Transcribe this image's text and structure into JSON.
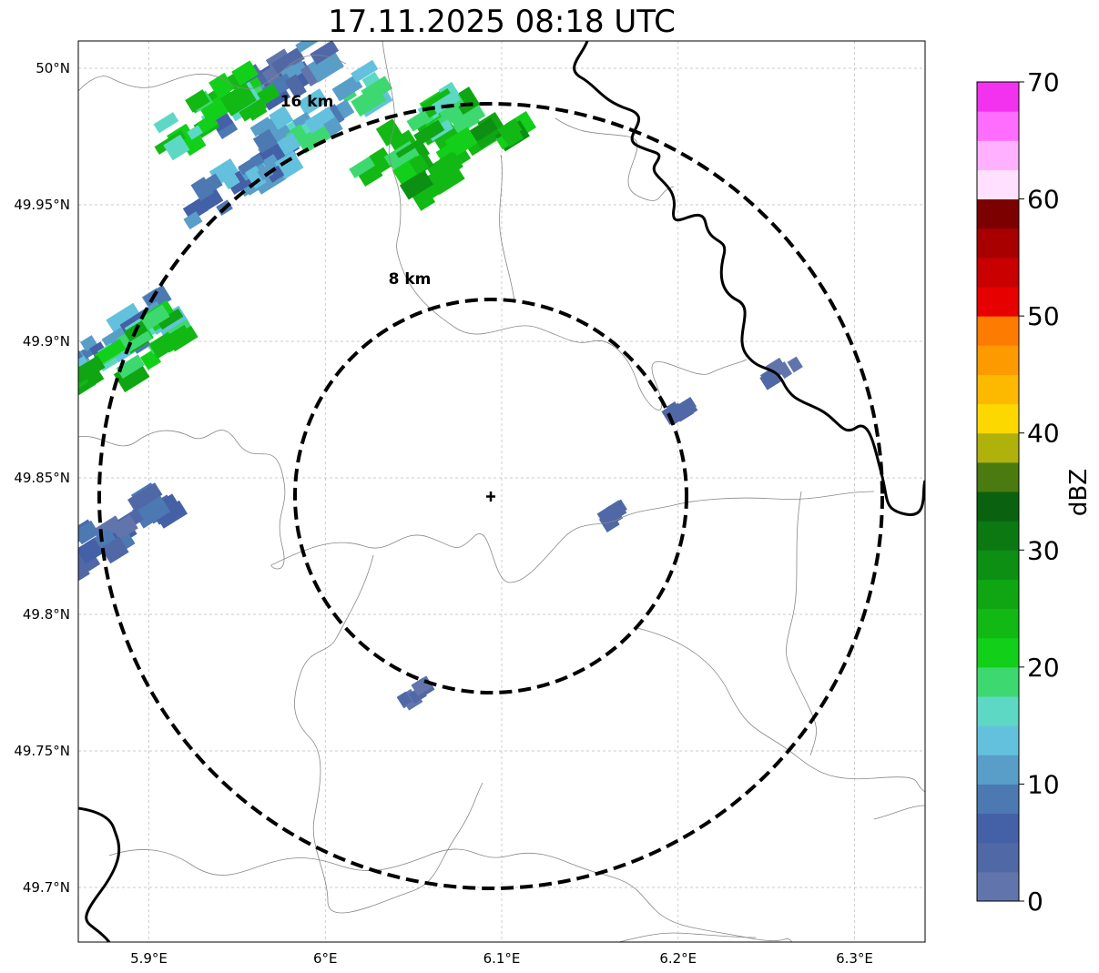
{
  "title": "17.11.2025 08:18 UTC",
  "map": {
    "lon_range": [
      5.86,
      6.34
    ],
    "lat_range": [
      49.68,
      50.01
    ],
    "x_ticks": [
      {
        "value": 5.9,
        "label": "5.9°E"
      },
      {
        "value": 6.0,
        "label": "6°E"
      },
      {
        "value": 6.1,
        "label": "6.1°E"
      },
      {
        "value": 6.2,
        "label": "6.2°E"
      },
      {
        "value": 6.3,
        "label": "6.3°E"
      }
    ],
    "y_ticks": [
      {
        "value": 50.0,
        "label": "50°N"
      },
      {
        "value": 49.95,
        "label": "49.95°N"
      },
      {
        "value": 49.9,
        "label": "49.9°N"
      },
      {
        "value": 49.85,
        "label": "49.85°N"
      },
      {
        "value": 49.8,
        "label": "49.8°N"
      },
      {
        "value": 49.75,
        "label": "49.75°N"
      },
      {
        "value": 49.7,
        "label": "49.7°N"
      }
    ],
    "gridlines": true,
    "radar_site": {
      "lon": 6.095,
      "lat": 49.843
    },
    "range_rings": [
      {
        "label": "8 km",
        "radius_km": 8
      },
      {
        "label": "16 km",
        "radius_km": 16
      }
    ],
    "echoes": [
      {
        "lon": 5.97,
        "lat": 49.995,
        "dbz": 6
      },
      {
        "lon": 6.0,
        "lat": 49.985,
        "dbz": 14
      },
      {
        "lon": 6.05,
        "lat": 49.975,
        "dbz": 21
      },
      {
        "lon": 6.08,
        "lat": 49.97,
        "dbz": 24
      },
      {
        "lon": 5.95,
        "lat": 49.96,
        "dbz": 10
      },
      {
        "lon": 5.94,
        "lat": 49.985,
        "dbz": 20
      },
      {
        "lon": 5.88,
        "lat": 49.9,
        "dbz": 12
      },
      {
        "lon": 5.89,
        "lat": 49.895,
        "dbz": 22
      },
      {
        "lon": 5.88,
        "lat": 49.83,
        "dbz": 5
      },
      {
        "lon": 6.2,
        "lat": 49.875,
        "dbz": 4
      },
      {
        "lon": 6.16,
        "lat": 49.835,
        "dbz": 4
      },
      {
        "lon": 6.05,
        "lat": 49.77,
        "dbz": 2
      },
      {
        "lon": 6.258,
        "lat": 49.89,
        "dbz": 2
      }
    ]
  },
  "colorbar": {
    "label": "dBZ",
    "ticks": [
      {
        "value": 0,
        "label": "0"
      },
      {
        "value": 10,
        "label": "10"
      },
      {
        "value": 20,
        "label": "20"
      },
      {
        "value": 30,
        "label": "30"
      },
      {
        "value": 40,
        "label": "40"
      },
      {
        "value": 50,
        "label": "50"
      },
      {
        "value": 60,
        "label": "60"
      },
      {
        "value": 70,
        "label": "70"
      }
    ],
    "range": [
      0,
      70
    ],
    "colors": [
      "#6175ac",
      "#5068a6",
      "#4460a6",
      "#4c79b2",
      "#589ec8",
      "#63c1dd",
      "#5dd8c5",
      "#3ed870",
      "#12cf1a",
      "#12b814",
      "#0fa513",
      "#0c8f12",
      "#0b7812",
      "#0a6110",
      "#4a7a10",
      "#b0b20c",
      "#fcd800",
      "#fcb900",
      "#fc9a00",
      "#fc7b00",
      "#e60000",
      "#c90000",
      "#a80000",
      "#7d0000",
      "#ffe0ff",
      "#ffb0ff",
      "#ff6dff",
      "#f232ee"
    ],
    "band_width_dbz": 2.5
  }
}
